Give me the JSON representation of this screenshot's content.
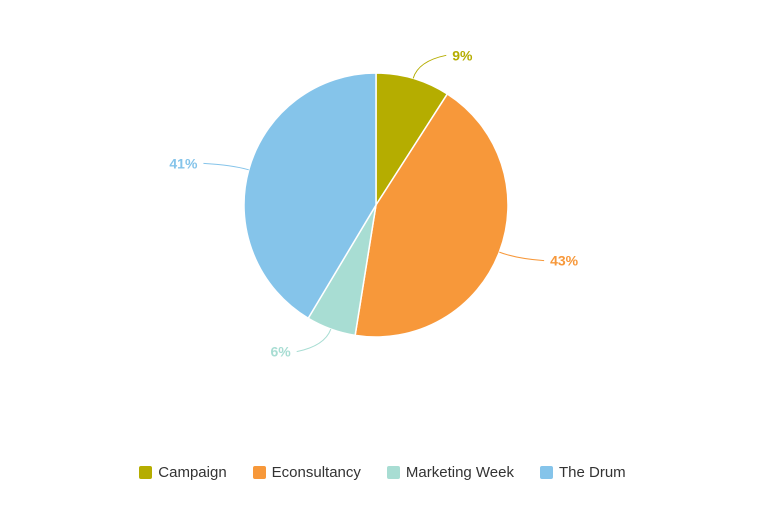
{
  "chart_data": {
    "type": "pie",
    "title": "",
    "categories": [
      "Campaign",
      "Econsultancy",
      "Marketing Week",
      "The Drum"
    ],
    "values": [
      9,
      43,
      6,
      41
    ],
    "labels": [
      "9%",
      "43%",
      "6%",
      "41%"
    ],
    "colors": [
      "#b5ad00",
      "#f7983a",
      "#a8ddd3",
      "#85c4ea"
    ],
    "legend": "bottom-center"
  }
}
